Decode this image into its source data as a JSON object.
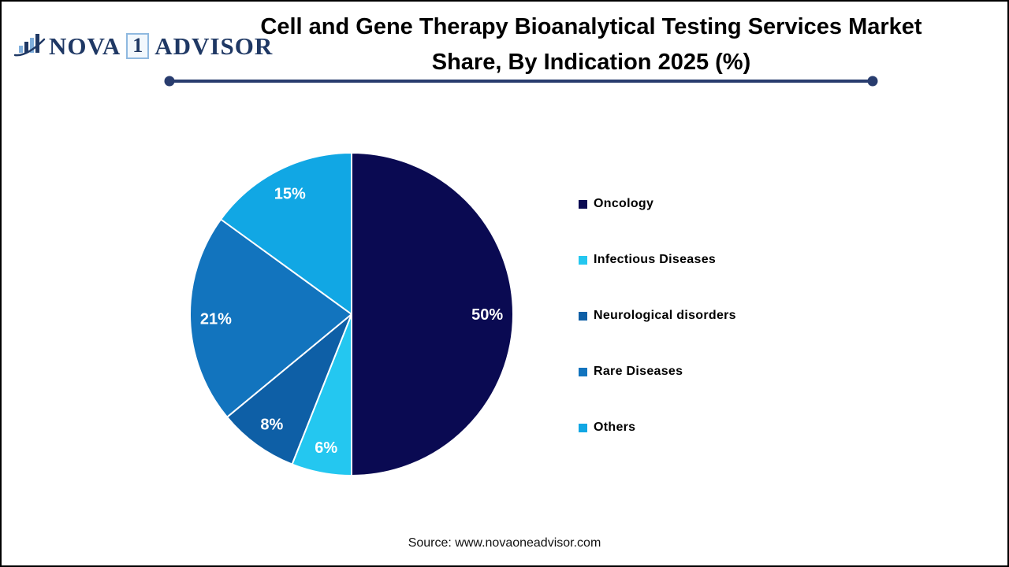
{
  "logo": {
    "brand_part1": "NOVA",
    "brand_boxed": "1",
    "brand_part2": "ADVISOR",
    "navy": "#1F3864",
    "light_blue": "#7FAEDC"
  },
  "header": {
    "title_line1": "Cell and Gene Therapy Bioanalytical Testing Services Market",
    "title_line2": "Share, By Indication 2025 (%)",
    "divider_color": "#283C6E"
  },
  "chart_data": {
    "type": "pie",
    "title": "Cell and Gene Therapy Bioanalytical Testing Services Market Share, By Indication 2025 (%)",
    "start_angle_deg": 0,
    "direction": "clockwise",
    "legend_position": "right",
    "label_color": "#FFFFFF",
    "slice_border_color": "#FFFFFF",
    "slices": [
      {
        "label": "Oncology",
        "value": 50,
        "display": "50%",
        "color": "#0A0A52"
      },
      {
        "label": "Infectious Diseases",
        "value": 6,
        "display": "6%",
        "color": "#24C7F0"
      },
      {
        "label": "Neurological disorders",
        "value": 8,
        "display": "8%",
        "color": "#0E5FA6"
      },
      {
        "label": "Rare Diseases",
        "value": 21,
        "display": "21%",
        "color": "#1274BE"
      },
      {
        "label": "Others",
        "value": 15,
        "display": "15%",
        "color": "#11A7E4"
      }
    ],
    "legend_order": [
      "Oncology",
      "Infectious Diseases",
      "Neurological disorders",
      "Rare Diseases",
      "Others"
    ]
  },
  "footer": {
    "source": "Source: www.novaoneadvisor.com"
  }
}
